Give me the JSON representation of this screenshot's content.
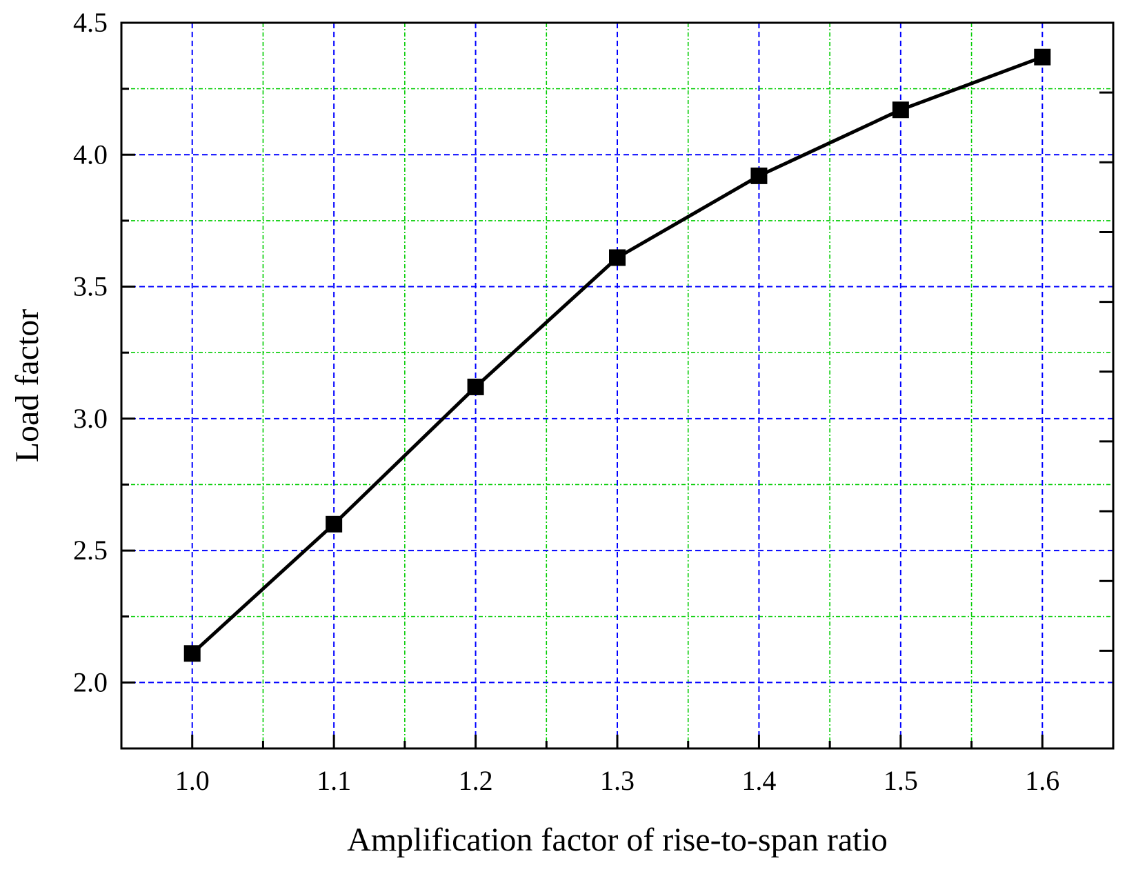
{
  "chart_data": {
    "type": "line",
    "title": "",
    "xlabel": "Amplification factor of rise-to-span ratio",
    "ylabel": "Load factor",
    "xlim": [
      0.95,
      1.65
    ],
    "ylim": [
      1.75,
      4.5
    ],
    "xticks": [
      1.0,
      1.1,
      1.2,
      1.3,
      1.4,
      1.5,
      1.6
    ],
    "xtick_labels": [
      "1.0",
      "1.1",
      "1.2",
      "1.3",
      "1.4",
      "1.5",
      "1.6"
    ],
    "xminor": [
      1.05,
      1.15,
      1.25,
      1.35,
      1.45,
      1.55
    ],
    "yticks": [
      2.0,
      2.5,
      3.0,
      3.5,
      4.0,
      4.5
    ],
    "ytick_labels": [
      "2.0",
      "2.5",
      "3.0",
      "3.5",
      "4.0",
      "4.5"
    ],
    "yminor": [
      2.25,
      2.75,
      3.25,
      3.75,
      4.25
    ],
    "grid": true,
    "series": [
      {
        "name": "Load factor",
        "marker": "square",
        "x": [
          1.0,
          1.1,
          1.2,
          1.3,
          1.4,
          1.5,
          1.6
        ],
        "values": [
          2.11,
          2.6,
          3.12,
          3.61,
          3.92,
          4.17,
          4.37
        ]
      }
    ],
    "colors": {
      "major_grid": "#0000ff",
      "minor_grid": "#00cc00",
      "line": "#000000",
      "axis": "#000000"
    }
  }
}
